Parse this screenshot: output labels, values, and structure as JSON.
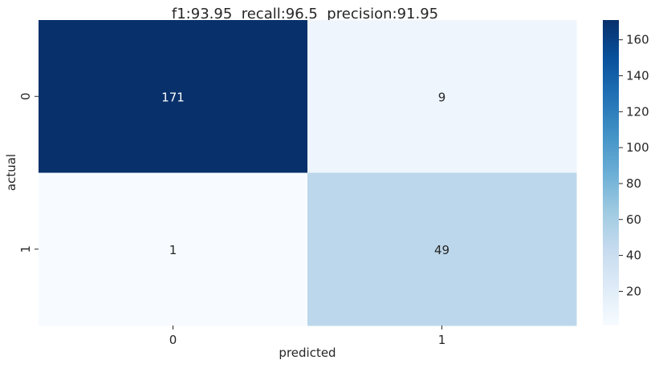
{
  "chart_data": {
    "type": "heatmap",
    "title": "f1:93.95  recall:96.5  precision:91.95",
    "xlabel": "predicted",
    "ylabel": "actual",
    "x_categories": [
      "0",
      "1"
    ],
    "y_categories": [
      "0",
      "1"
    ],
    "values": [
      [
        171,
        9
      ],
      [
        1,
        49
      ]
    ],
    "colormap": "Blues",
    "colorbar": {
      "vmin": 1,
      "vmax": 171,
      "ticks": [
        20,
        40,
        60,
        80,
        100,
        120,
        140,
        160
      ]
    },
    "annotation_colors": {
      "dark_cell": "#ffffff",
      "light_cell": "#262626"
    }
  }
}
